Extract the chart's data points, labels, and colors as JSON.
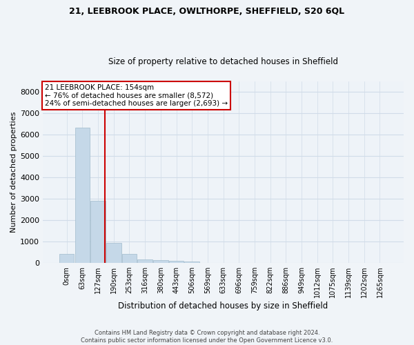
{
  "title1": "21, LEEBROOK PLACE, OWLTHORPE, SHEFFIELD, S20 6QL",
  "title2": "Size of property relative to detached houses in Sheffield",
  "xlabel": "Distribution of detached houses by size in Sheffield",
  "ylabel": "Number of detached properties",
  "bar_labels": [
    "0sqm",
    "63sqm",
    "127sqm",
    "190sqm",
    "253sqm",
    "316sqm",
    "380sqm",
    "443sqm",
    "506sqm",
    "569sqm",
    "633sqm",
    "696sqm",
    "759sqm",
    "822sqm",
    "886sqm",
    "949sqm",
    "1012sqm",
    "1075sqm",
    "1139sqm",
    "1202sqm",
    "1265sqm"
  ],
  "bar_values": [
    430,
    6350,
    2900,
    950,
    420,
    180,
    130,
    90,
    60,
    10,
    5,
    2,
    1,
    0,
    0,
    0,
    0,
    0,
    0,
    0,
    0
  ],
  "bar_color": "#c5d8e8",
  "bar_edge_color": "#a0bbcc",
  "grid_color": "#d0dce8",
  "background_color": "#eef3f8",
  "fig_background": "#f0f4f8",
  "annotation_text": "21 LEEBROOK PLACE: 154sqm\n← 76% of detached houses are smaller (8,572)\n24% of semi-detached houses are larger (2,693) →",
  "annotation_box_color": "#ffffff",
  "annotation_box_edge": "#cc0000",
  "ylim": [
    0,
    8500
  ],
  "yticks": [
    0,
    1000,
    2000,
    3000,
    4000,
    5000,
    6000,
    7000,
    8000
  ],
  "footer1": "Contains HM Land Registry data © Crown copyright and database right 2024.",
  "footer2": "Contains public sector information licensed under the Open Government Licence v3.0."
}
